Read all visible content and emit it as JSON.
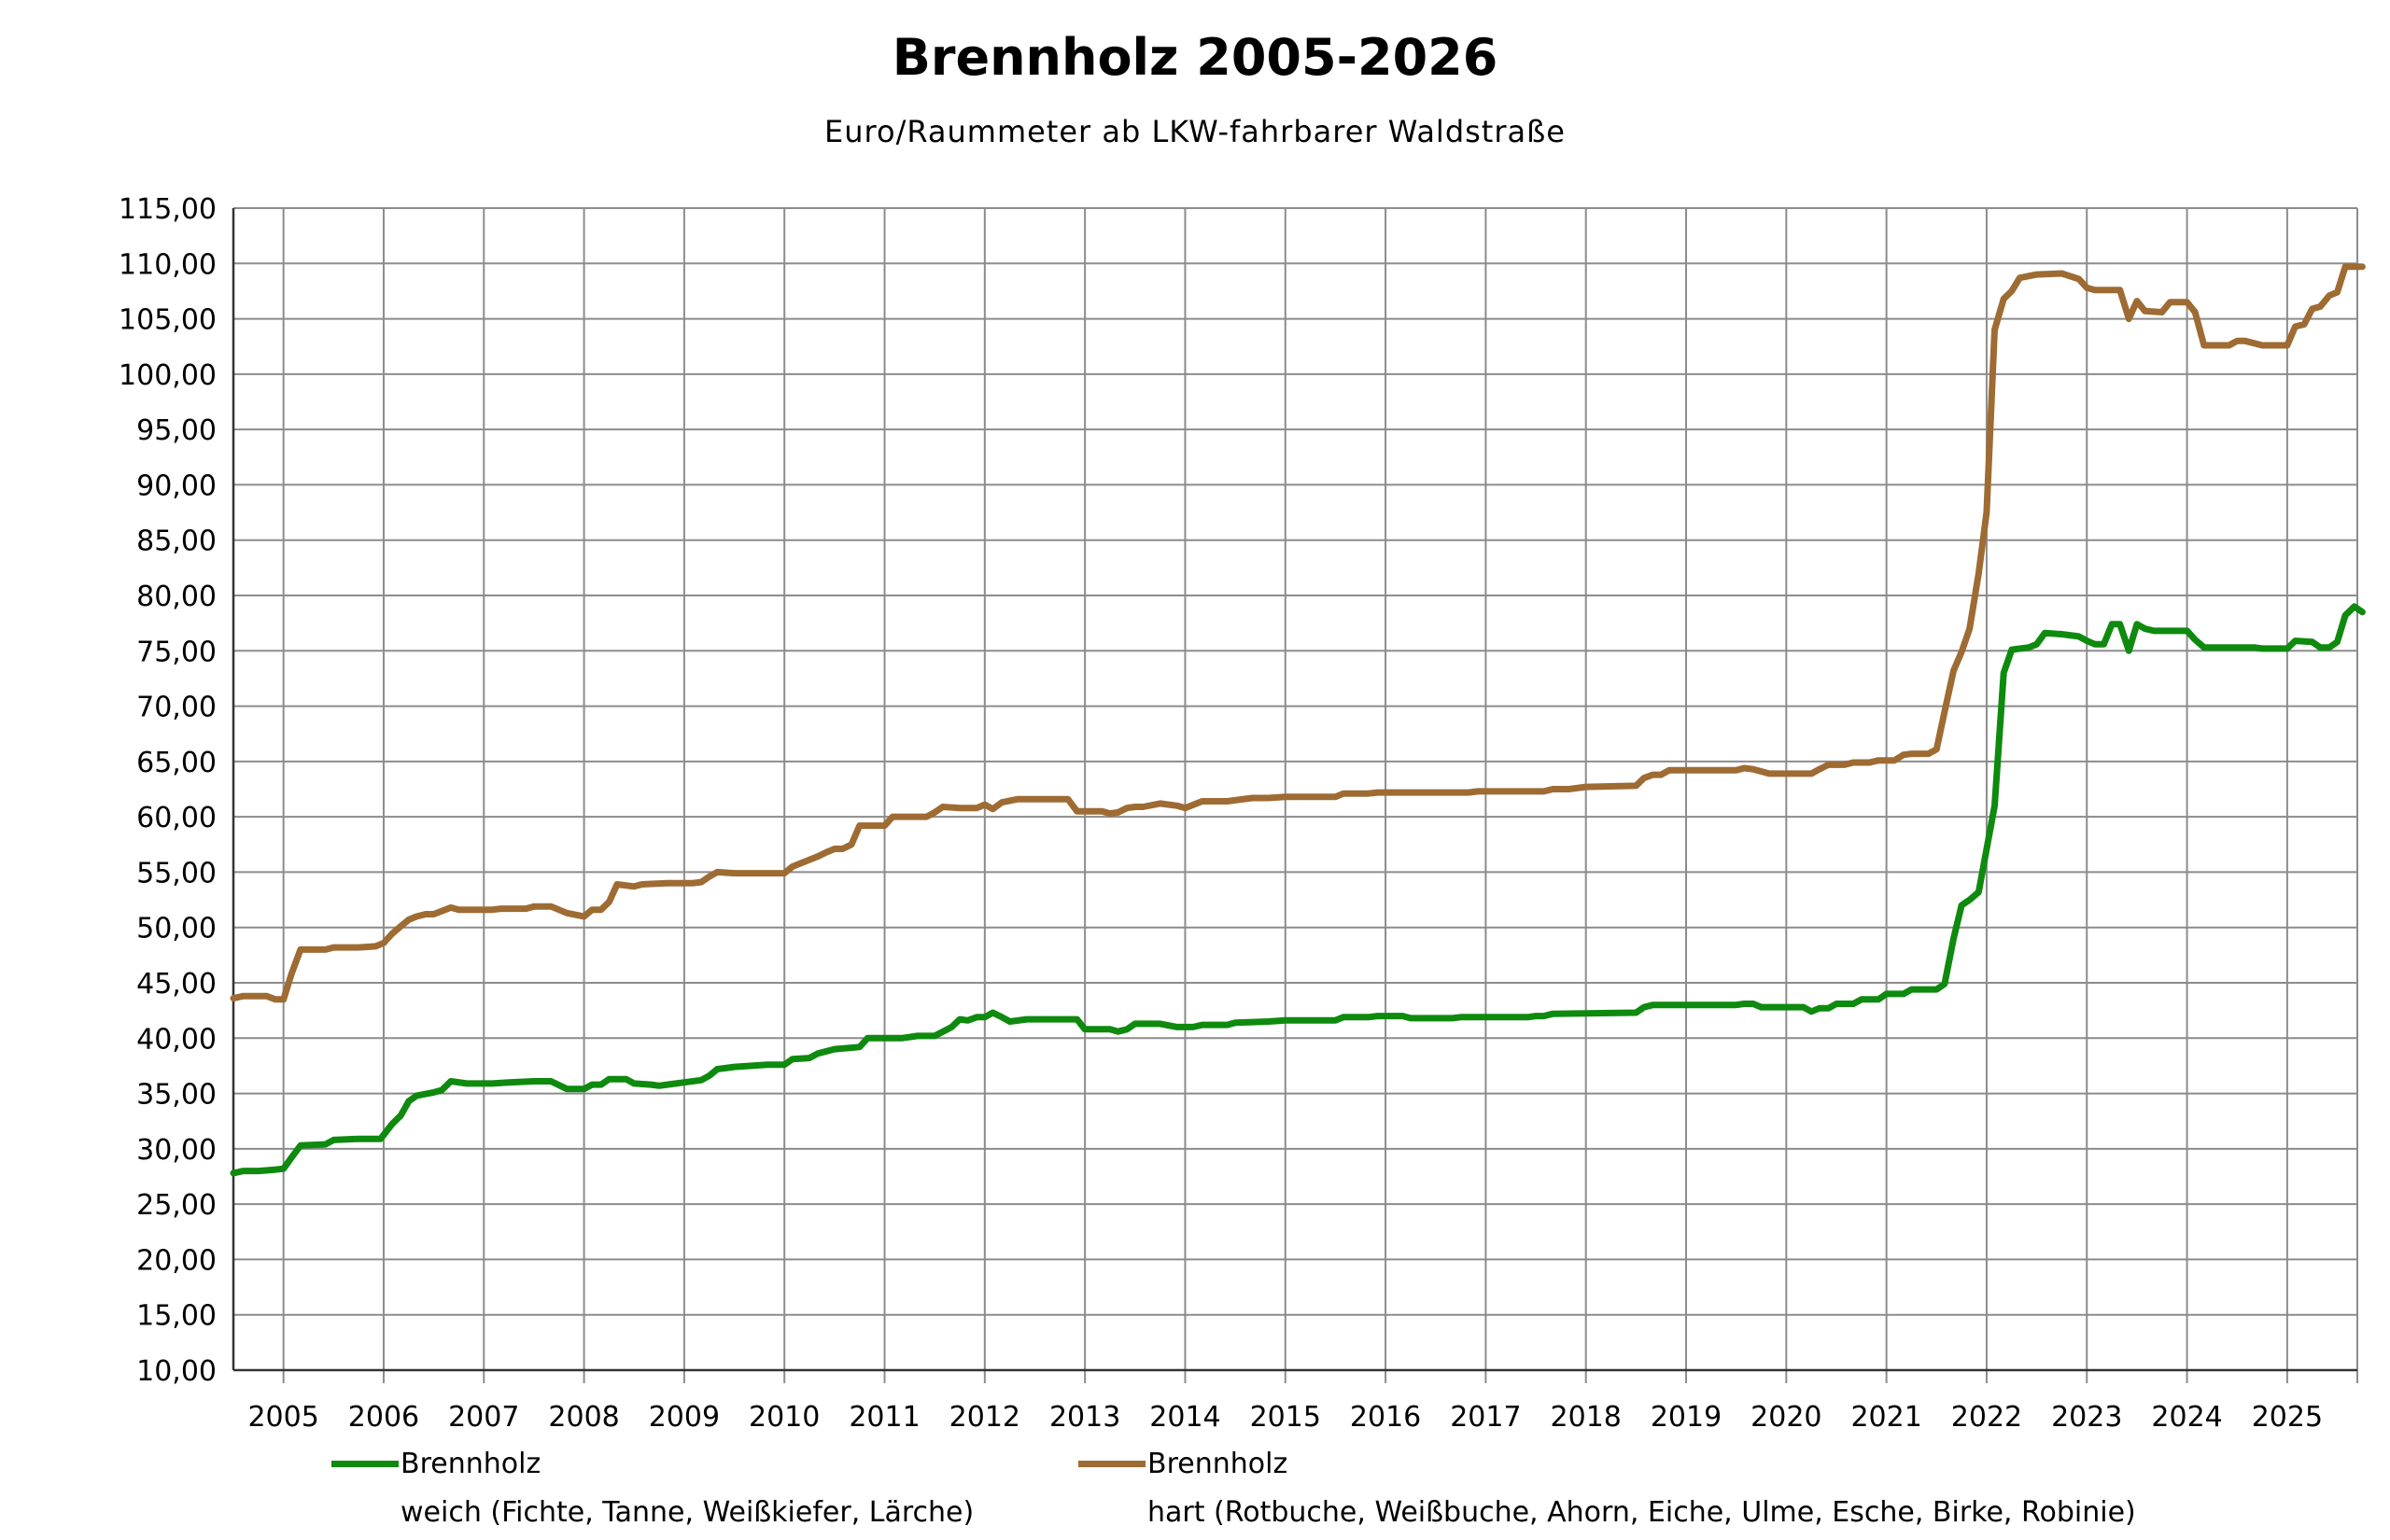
{
  "chart_data": {
    "type": "line",
    "title": "Brennholz 2005-2026",
    "subtitle": "Euro/Raummeter ab LKW-fahrbarer Waldstraße",
    "xlabel": "",
    "ylabel": "",
    "ylim": [
      10,
      115
    ],
    "yticks": [
      "10,00",
      "15,00",
      "20,00",
      "25,00",
      "30,00",
      "35,00",
      "40,00",
      "45,00",
      "50,00",
      "55,00",
      "60,00",
      "65,00",
      "70,00",
      "75,00",
      "80,00",
      "85,00",
      "90,00",
      "95,00",
      "100,00",
      "105,00",
      "110,00",
      "115,00"
    ],
    "xlim": [
      2004.5,
      2025.7
    ],
    "xticks": [
      "2005",
      "2006",
      "2007",
      "2008",
      "2009",
      "2010",
      "2011",
      "2012",
      "2013",
      "2014",
      "2015",
      "2016",
      "2017",
      "2018",
      "2019",
      "2020",
      "2021",
      "2022",
      "2023",
      "2024",
      "2025"
    ],
    "grid": true,
    "legend_position": "bottom",
    "series": [
      {
        "name": "weich (Fichte, Tanne, Weißkiefer, Lärche)",
        "legend_title": "Brennholz",
        "color": "#0e8a0e",
        "points": [
          [
            2004.5,
            27.8
          ],
          [
            2004.6,
            28.0
          ],
          [
            2004.75,
            28.0
          ],
          [
            2004.9,
            28.1
          ],
          [
            2005.0,
            28.2
          ],
          [
            2005.08,
            29.2
          ],
          [
            2005.17,
            30.3
          ],
          [
            2005.42,
            30.4
          ],
          [
            2005.5,
            30.8
          ],
          [
            2005.75,
            30.9
          ],
          [
            2005.97,
            30.9
          ],
          [
            2006.08,
            32.2
          ],
          [
            2006.17,
            33.0
          ],
          [
            2006.25,
            34.3
          ],
          [
            2006.33,
            34.8
          ],
          [
            2006.5,
            35.1
          ],
          [
            2006.58,
            35.3
          ],
          [
            2006.67,
            36.1
          ],
          [
            2006.83,
            35.9
          ],
          [
            2007.08,
            35.9
          ],
          [
            2007.25,
            36.0
          ],
          [
            2007.5,
            36.1
          ],
          [
            2007.67,
            36.1
          ],
          [
            2007.83,
            35.4
          ],
          [
            2008.0,
            35.4
          ],
          [
            2008.08,
            35.8
          ],
          [
            2008.17,
            35.8
          ],
          [
            2008.25,
            36.3
          ],
          [
            2008.42,
            36.3
          ],
          [
            2008.5,
            35.9
          ],
          [
            2008.67,
            35.8
          ],
          [
            2008.75,
            35.7
          ],
          [
            2008.83,
            35.8
          ],
          [
            2009.0,
            36.0
          ],
          [
            2009.17,
            36.2
          ],
          [
            2009.25,
            36.6
          ],
          [
            2009.33,
            37.2
          ],
          [
            2009.5,
            37.4
          ],
          [
            2009.83,
            37.6
          ],
          [
            2010.0,
            37.6
          ],
          [
            2010.08,
            38.1
          ],
          [
            2010.25,
            38.2
          ],
          [
            2010.33,
            38.6
          ],
          [
            2010.5,
            39.0
          ],
          [
            2010.75,
            39.2
          ],
          [
            2010.83,
            40.0
          ],
          [
            2011.17,
            40.0
          ],
          [
            2011.33,
            40.2
          ],
          [
            2011.5,
            40.2
          ],
          [
            2011.67,
            41.0
          ],
          [
            2011.75,
            41.7
          ],
          [
            2011.83,
            41.6
          ],
          [
            2011.92,
            41.9
          ],
          [
            2012.0,
            41.9
          ],
          [
            2012.08,
            42.3
          ],
          [
            2012.17,
            41.9
          ],
          [
            2012.25,
            41.5
          ],
          [
            2012.42,
            41.7
          ],
          [
            2012.75,
            41.7
          ],
          [
            2012.92,
            41.7
          ],
          [
            2013.0,
            40.8
          ],
          [
            2013.17,
            40.8
          ],
          [
            2013.25,
            40.8
          ],
          [
            2013.33,
            40.6
          ],
          [
            2013.42,
            40.8
          ],
          [
            2013.5,
            41.3
          ],
          [
            2013.75,
            41.3
          ],
          [
            2013.92,
            41.0
          ],
          [
            2014.08,
            41.0
          ],
          [
            2014.17,
            41.2
          ],
          [
            2014.42,
            41.2
          ],
          [
            2014.5,
            41.4
          ],
          [
            2014.83,
            41.5
          ],
          [
            2015.0,
            41.6
          ],
          [
            2015.5,
            41.6
          ],
          [
            2015.58,
            41.9
          ],
          [
            2015.83,
            41.9
          ],
          [
            2015.92,
            42.0
          ],
          [
            2016.17,
            42.0
          ],
          [
            2016.25,
            41.8
          ],
          [
            2016.67,
            41.8
          ],
          [
            2016.75,
            41.9
          ],
          [
            2017.42,
            41.9
          ],
          [
            2017.5,
            42.0
          ],
          [
            2017.58,
            42.0
          ],
          [
            2017.67,
            42.2
          ],
          [
            2018.5,
            42.3
          ],
          [
            2018.58,
            42.8
          ],
          [
            2018.67,
            43.0
          ],
          [
            2019.5,
            43.0
          ],
          [
            2019.58,
            43.1
          ],
          [
            2019.67,
            43.1
          ],
          [
            2019.75,
            42.8
          ],
          [
            2020.17,
            42.8
          ],
          [
            2020.25,
            42.4
          ],
          [
            2020.33,
            42.7
          ],
          [
            2020.42,
            42.7
          ],
          [
            2020.5,
            43.1
          ],
          [
            2020.67,
            43.1
          ],
          [
            2020.75,
            43.5
          ],
          [
            2020.92,
            43.5
          ],
          [
            2021.0,
            44.0
          ],
          [
            2021.17,
            44.0
          ],
          [
            2021.25,
            44.4
          ],
          [
            2021.5,
            44.4
          ],
          [
            2021.58,
            44.9
          ],
          [
            2021.67,
            49.0
          ],
          [
            2021.75,
            52.0
          ],
          [
            2021.83,
            52.5
          ],
          [
            2021.92,
            53.2
          ],
          [
            2022.08,
            61.0
          ],
          [
            2022.17,
            73.0
          ],
          [
            2022.25,
            75.1
          ],
          [
            2022.42,
            75.3
          ],
          [
            2022.5,
            75.6
          ],
          [
            2022.58,
            76.6
          ],
          [
            2022.75,
            76.5
          ],
          [
            2022.92,
            76.3
          ],
          [
            2023.0,
            75.9
          ],
          [
            2023.08,
            75.6
          ],
          [
            2023.17,
            75.6
          ],
          [
            2023.25,
            77.4
          ],
          [
            2023.33,
            77.4
          ],
          [
            2023.42,
            75.0
          ],
          [
            2023.5,
            77.4
          ],
          [
            2023.58,
            77.0
          ],
          [
            2023.67,
            76.8
          ],
          [
            2024.0,
            76.8
          ],
          [
            2024.08,
            76.0
          ],
          [
            2024.17,
            75.3
          ],
          [
            2024.5,
            75.3
          ],
          [
            2024.67,
            75.3
          ],
          [
            2024.75,
            75.2
          ],
          [
            2025.0,
            75.2
          ],
          [
            2025.08,
            75.9
          ],
          [
            2025.25,
            75.8
          ],
          [
            2025.33,
            75.3
          ],
          [
            2025.42,
            75.3
          ],
          [
            2025.5,
            75.8
          ],
          [
            2025.58,
            78.2
          ],
          [
            2025.67,
            79.0
          ],
          [
            2025.75,
            78.5
          ]
        ]
      },
      {
        "name": "hart (Rotbuche, Weißbuche, Ahorn, Eiche, Ulme, Esche, Birke, Robinie)",
        "legend_title": "Brennholz",
        "color": "#9e6b33",
        "points": [
          [
            2004.5,
            43.6
          ],
          [
            2004.6,
            43.8
          ],
          [
            2004.83,
            43.8
          ],
          [
            2004.92,
            43.5
          ],
          [
            2005.0,
            43.5
          ],
          [
            2005.08,
            45.8
          ],
          [
            2005.17,
            48.0
          ],
          [
            2005.42,
            48.0
          ],
          [
            2005.5,
            48.2
          ],
          [
            2005.75,
            48.2
          ],
          [
            2005.92,
            48.3
          ],
          [
            2006.0,
            48.6
          ],
          [
            2006.08,
            49.4
          ],
          [
            2006.17,
            50.1
          ],
          [
            2006.25,
            50.7
          ],
          [
            2006.33,
            51.0
          ],
          [
            2006.42,
            51.2
          ],
          [
            2006.5,
            51.2
          ],
          [
            2006.67,
            51.8
          ],
          [
            2006.75,
            51.6
          ],
          [
            2007.08,
            51.6
          ],
          [
            2007.17,
            51.7
          ],
          [
            2007.42,
            51.7
          ],
          [
            2007.5,
            51.9
          ],
          [
            2007.67,
            51.9
          ],
          [
            2007.83,
            51.3
          ],
          [
            2008.0,
            51.0
          ],
          [
            2008.08,
            51.6
          ],
          [
            2008.17,
            51.6
          ],
          [
            2008.25,
            52.3
          ],
          [
            2008.33,
            53.9
          ],
          [
            2008.5,
            53.7
          ],
          [
            2008.58,
            53.9
          ],
          [
            2008.83,
            54.0
          ],
          [
            2009.08,
            54.0
          ],
          [
            2009.17,
            54.1
          ],
          [
            2009.25,
            54.6
          ],
          [
            2009.33,
            55.0
          ],
          [
            2009.5,
            54.9
          ],
          [
            2009.83,
            54.9
          ],
          [
            2010.0,
            54.9
          ],
          [
            2010.08,
            55.5
          ],
          [
            2010.33,
            56.4
          ],
          [
            2010.42,
            56.8
          ],
          [
            2010.5,
            57.1
          ],
          [
            2010.58,
            57.1
          ],
          [
            2010.67,
            57.5
          ],
          [
            2010.75,
            59.2
          ],
          [
            2011.0,
            59.2
          ],
          [
            2011.08,
            60.0
          ],
          [
            2011.42,
            60.0
          ],
          [
            2011.5,
            60.4
          ],
          [
            2011.58,
            60.9
          ],
          [
            2011.75,
            60.8
          ],
          [
            2011.92,
            60.8
          ],
          [
            2012.0,
            61.1
          ],
          [
            2012.08,
            60.7
          ],
          [
            2012.17,
            61.3
          ],
          [
            2012.33,
            61.6
          ],
          [
            2012.67,
            61.6
          ],
          [
            2012.83,
            61.6
          ],
          [
            2012.92,
            60.5
          ],
          [
            2013.17,
            60.5
          ],
          [
            2013.25,
            60.3
          ],
          [
            2013.33,
            60.4
          ],
          [
            2013.42,
            60.8
          ],
          [
            2013.5,
            60.9
          ],
          [
            2013.58,
            60.9
          ],
          [
            2013.75,
            61.2
          ],
          [
            2013.92,
            61.0
          ],
          [
            2014.0,
            60.8
          ],
          [
            2014.17,
            61.4
          ],
          [
            2014.42,
            61.4
          ],
          [
            2014.5,
            61.5
          ],
          [
            2014.67,
            61.7
          ],
          [
            2014.83,
            61.7
          ],
          [
            2015.0,
            61.8
          ],
          [
            2015.5,
            61.8
          ],
          [
            2015.58,
            62.1
          ],
          [
            2015.83,
            62.1
          ],
          [
            2015.92,
            62.2
          ],
          [
            2016.83,
            62.2
          ],
          [
            2016.92,
            62.3
          ],
          [
            2017.58,
            62.3
          ],
          [
            2017.67,
            62.5
          ],
          [
            2017.83,
            62.5
          ],
          [
            2018.0,
            62.7
          ],
          [
            2018.5,
            62.8
          ],
          [
            2018.58,
            63.5
          ],
          [
            2018.67,
            63.8
          ],
          [
            2018.75,
            63.8
          ],
          [
            2018.83,
            64.2
          ],
          [
            2019.5,
            64.2
          ],
          [
            2019.58,
            64.4
          ],
          [
            2019.67,
            64.3
          ],
          [
            2019.75,
            64.1
          ],
          [
            2019.83,
            63.9
          ],
          [
            2020.25,
            63.9
          ],
          [
            2020.33,
            64.3
          ],
          [
            2020.42,
            64.7
          ],
          [
            2020.58,
            64.7
          ],
          [
            2020.67,
            64.9
          ],
          [
            2020.83,
            64.9
          ],
          [
            2020.92,
            65.1
          ],
          [
            2021.08,
            65.1
          ],
          [
            2021.17,
            65.6
          ],
          [
            2021.25,
            65.7
          ],
          [
            2021.42,
            65.7
          ],
          [
            2021.5,
            66.1
          ],
          [
            2021.58,
            69.5
          ],
          [
            2021.67,
            73.2
          ],
          [
            2021.75,
            74.9
          ],
          [
            2021.83,
            77.0
          ],
          [
            2021.92,
            82.0
          ],
          [
            2022.0,
            87.5
          ],
          [
            2022.08,
            104.0
          ],
          [
            2022.17,
            106.8
          ],
          [
            2022.25,
            107.5
          ],
          [
            2022.33,
            108.7
          ],
          [
            2022.5,
            109.0
          ],
          [
            2022.75,
            109.1
          ],
          [
            2022.92,
            108.6
          ],
          [
            2023.0,
            107.8
          ],
          [
            2023.08,
            107.6
          ],
          [
            2023.33,
            107.6
          ],
          [
            2023.42,
            105.0
          ],
          [
            2023.5,
            106.6
          ],
          [
            2023.58,
            105.7
          ],
          [
            2023.75,
            105.6
          ],
          [
            2023.83,
            106.5
          ],
          [
            2024.0,
            106.5
          ],
          [
            2024.08,
            105.6
          ],
          [
            2024.17,
            102.6
          ],
          [
            2024.42,
            102.6
          ],
          [
            2024.5,
            103.0
          ],
          [
            2024.58,
            103.0
          ],
          [
            2024.75,
            102.6
          ],
          [
            2025.0,
            102.6
          ],
          [
            2025.08,
            104.3
          ],
          [
            2025.17,
            104.5
          ],
          [
            2025.25,
            105.9
          ],
          [
            2025.33,
            106.1
          ],
          [
            2025.42,
            107.1
          ],
          [
            2025.5,
            107.4
          ],
          [
            2025.58,
            109.7
          ],
          [
            2025.75,
            109.7
          ]
        ]
      }
    ]
  }
}
